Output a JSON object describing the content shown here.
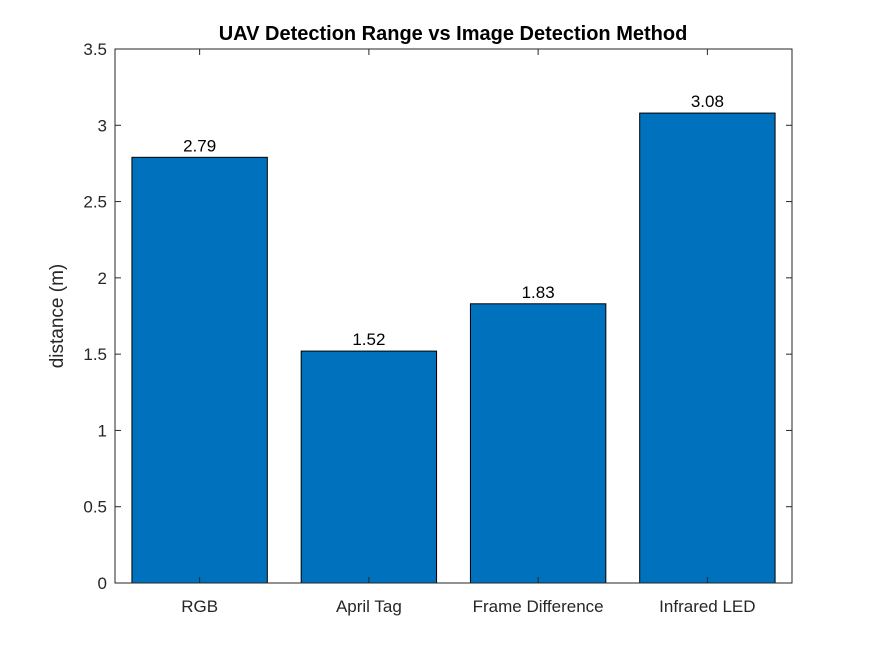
{
  "chart_data": {
    "type": "bar",
    "title": "UAV Detection Range vs Image Detection Method",
    "xlabel": "",
    "ylabel": "distance (m)",
    "categories": [
      "RGB",
      "April Tag",
      "Frame Difference",
      "Infrared LED"
    ],
    "values": [
      2.79,
      1.52,
      1.83,
      3.08
    ],
    "data_labels": [
      "2.79",
      "1.52",
      "1.83",
      "3.08"
    ],
    "ylim": [
      0,
      3.5
    ],
    "yticks": [
      0,
      0.5,
      1,
      1.5,
      2,
      2.5,
      3,
      3.5
    ],
    "ytick_labels": [
      "0",
      "0.5",
      "1",
      "1.5",
      "2",
      "2.5",
      "3",
      "3.5"
    ],
    "grid": false,
    "bar_color": "#0072BD",
    "bar_edge_color": "#000000"
  }
}
